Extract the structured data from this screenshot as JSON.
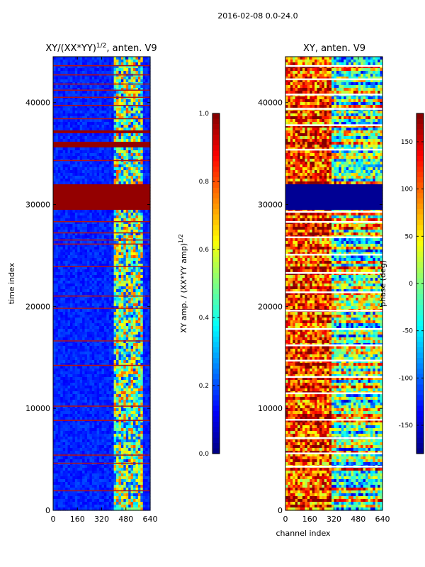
{
  "chart_data": {
    "type": "heatmap",
    "suptitle": "2016-02-08 0.0-24.0",
    "xlabel": "channel index",
    "panels": [
      {
        "title_main": "XY/(XX*YY)",
        "title_sup": "1/2",
        "title_tail": ", anten. V9",
        "ylabel": "time index",
        "xlim": [
          0,
          640
        ],
        "ylim": [
          0,
          44500
        ],
        "xticks": [
          "0",
          "160",
          "320",
          "480",
          "640"
        ],
        "yticks": [
          "0",
          "10000",
          "20000",
          "30000",
          "40000"
        ],
        "colorbar": {
          "label_main": "XY amp. / (XX*YY amp)",
          "label_sup": "1/2",
          "range": [
            0.0,
            1.0
          ],
          "ticks": [
            "0.0",
            "0.2",
            "0.4",
            "0.6",
            "0.8",
            "1.0"
          ]
        },
        "background_value": 0.12,
        "high_block_ranges": [
          [
            29600,
            32000
          ],
          [
            35600,
            36200
          ],
          [
            37000,
            37400
          ]
        ],
        "flag_line_rows": [
          1900,
          4600,
          5400,
          8800,
          10200,
          14200,
          16600,
          19800,
          21000,
          23900,
          26100,
          26500,
          27200,
          28300,
          34300,
          38400,
          39700,
          40500,
          41200,
          41800,
          42700,
          43600
        ]
      },
      {
        "title_main": "XY",
        "title_sup": "",
        "title_tail": ", anten. V9",
        "ylabel": "",
        "xlim": [
          0,
          640
        ],
        "ylim": [
          0,
          44500
        ],
        "xticks": [
          "0",
          "160",
          "320",
          "480",
          "640"
        ],
        "yticks": [
          "0",
          "10000",
          "20000",
          "30000",
          "40000"
        ],
        "colorbar": {
          "label_main": "phase (deg)",
          "label_sup": "",
          "range": [
            -180,
            180
          ],
          "ticks": [
            "-150",
            "-100",
            "-50",
            "0",
            "50",
            "100",
            "150"
          ]
        },
        "low_block_ranges": [
          [
            29600,
            32000
          ]
        ],
        "white_gap_rows": [
          4300,
          5600,
          7100,
          8900,
          11500,
          13100,
          14700,
          16200,
          17800,
          19600,
          21400,
          23300,
          25100,
          26800,
          28300,
          29300,
          35400,
          37800,
          39400,
          40800,
          42300,
          43600
        ]
      }
    ]
  }
}
